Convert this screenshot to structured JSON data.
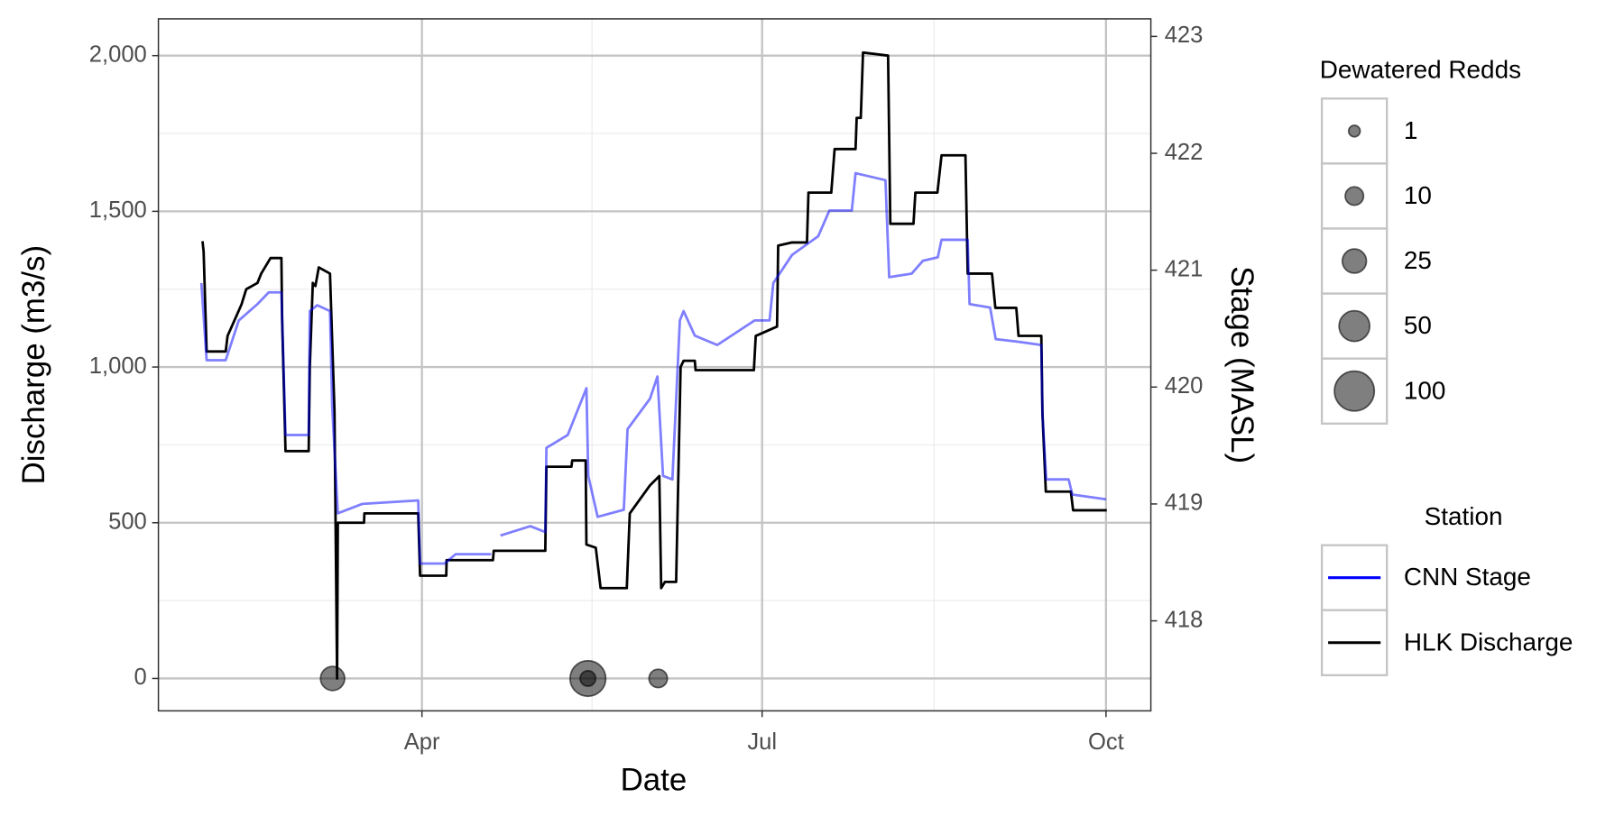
{
  "chart_data": {
    "type": "line",
    "x_label": "Date",
    "y_label": "Discharge (m3/s)",
    "y2_label": "Stage (MASL)",
    "legend_title": "Station",
    "grid": true,
    "xlim": [
      20.5,
      286
    ],
    "xticks": [
      {
        "value": 91,
        "label": "Apr"
      },
      {
        "value": 182,
        "label": "Jul"
      },
      {
        "value": 274,
        "label": "Oct"
      }
    ],
    "ylim": [
      -104,
      2118
    ],
    "yticks": [
      0,
      500,
      {
        "value": 1000,
        "label": "1,000"
      },
      {
        "value": 1500,
        "label": "1,500"
      },
      {
        "value": 2000,
        "label": "2,000"
      }
    ],
    "y2lim": [
      417.23,
      423.15
    ],
    "y2ticks": [
      418,
      419,
      420,
      421,
      422,
      423
    ],
    "series": [
      {
        "name": "CNN Stage",
        "color": "#0000ff",
        "axis": "y2",
        "x": [
          32,
          33.4,
          38.5,
          42,
          47,
          50,
          53.4,
          54.5,
          60.7,
          61,
          63,
          66.4,
          67,
          68.5,
          75,
          90,
          90.5,
          97,
          100,
          109.5,
          110.5,
          112,
          120,
          124,
          124.3,
          130,
          135,
          135.5,
          138,
          145,
          146,
          152,
          154,
          155.5,
          158,
          160,
          161,
          164,
          170,
          180,
          184,
          185,
          190,
          197,
          200,
          206,
          207,
          215,
          216,
          222,
          225,
          229,
          230,
          237,
          237.5,
          243,
          244.5,
          250,
          256.7,
          257,
          258,
          264,
          265,
          274
        ],
        "values": [
          420.89,
          420.23,
          420.23,
          420.57,
          420.71,
          420.81,
          420.81,
          419.59,
          419.59,
          420.65,
          420.7,
          420.65,
          419.83,
          418.92,
          419.0,
          419.03,
          418.49,
          418.49,
          418.57,
          418.57,
          null,
          418.73,
          418.81,
          418.76,
          419.48,
          419.59,
          419.99,
          419.24,
          418.89,
          418.95,
          419.64,
          419.9,
          420.09,
          419.24,
          419.21,
          420.57,
          420.65,
          420.44,
          420.36,
          420.57,
          420.57,
          420.89,
          421.13,
          421.29,
          421.51,
          421.51,
          421.83,
          421.77,
          420.94,
          420.97,
          421.08,
          421.11,
          421.26,
          421.26,
          420.71,
          420.68,
          420.41,
          420.39,
          420.36,
          419.77,
          419.21,
          419.21,
          419.08,
          419.04
        ]
      },
      {
        "name": "HLK Discharge",
        "color": "#000000",
        "x": [
          32.3,
          32.6,
          33.4,
          38.5,
          39,
          42.7,
          44,
          47,
          48,
          50.5,
          53.4,
          53.6,
          54.5,
          60.7,
          61,
          61.8,
          62.5,
          63.4,
          66.4,
          67.6,
          68.3,
          68.5,
          75.5,
          75.6,
          90,
          90.5,
          97.5,
          97.6,
          110,
          110.2,
          124,
          124.3,
          131,
          131.2,
          134.8,
          135,
          137.5,
          138.8,
          145.8,
          146.6,
          149,
          152,
          154.5,
          155,
          156,
          159,
          160.2,
          161,
          164,
          164.2,
          179.8,
          180.3,
          186,
          186.3,
          190,
          194,
          194.4,
          200.5,
          201.4,
          207,
          207.3,
          208.4,
          209,
          215.7,
          216.3,
          222.5,
          223,
          228.9,
          230,
          236.4,
          237,
          243.5,
          244.4,
          250,
          250.6,
          256.7,
          257,
          257.9,
          264.6,
          265.2,
          274.2
        ],
        "values": [
          1404,
          1370,
          1050,
          1050,
          1100,
          1200,
          1250,
          1270,
          1300,
          1350,
          1350,
          1150,
          730,
          730,
          1000,
          1270,
          1260,
          1320,
          1300,
          860,
          0,
          500,
          500,
          530,
          530,
          330,
          330,
          380,
          380,
          410,
          410,
          680,
          680,
          700,
          700,
          430,
          420,
          290,
          290,
          530,
          570,
          620,
          650,
          290,
          310,
          310,
          1000,
          1020,
          1020,
          990,
          990,
          1100,
          1130,
          1390,
          1400,
          1400,
          1560,
          1560,
          1700,
          1700,
          1800,
          1800,
          2010,
          2000,
          1460,
          1460,
          1560,
          1560,
          1680,
          1680,
          1300,
          1300,
          1190,
          1190,
          1100,
          1100,
          850,
          600,
          600,
          540,
          540
        ]
      }
    ],
    "bubbles": {
      "type": "scatter",
      "title": "Dewatered Redds",
      "color": "#000000",
      "x": [
        67.1,
        135.4,
        135.4,
        154.2
      ],
      "values": [
        0,
        0,
        0,
        0
      ],
      "sizes": [
        25,
        75,
        5,
        10
      ],
      "size_legend": [
        1,
        10,
        25,
        50,
        100
      ]
    }
  }
}
